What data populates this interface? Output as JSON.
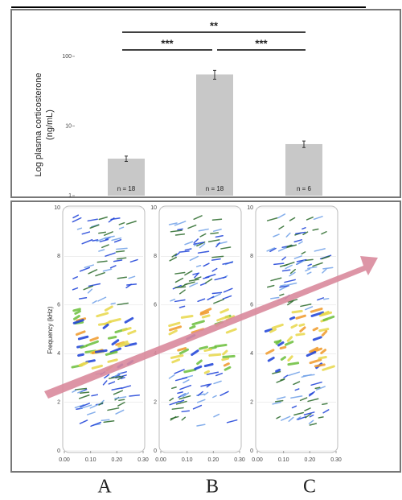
{
  "chart_data": [
    {
      "type": "bar",
      "ylabel": [
        "Log plasma corticosterone",
        "(ng/mL)"
      ],
      "categories": [
        "A",
        "B",
        "C"
      ],
      "values": [
        3.4,
        55,
        5.5
      ],
      "errors": [
        0.3,
        8,
        0.6
      ],
      "bar_labels": [
        "n = 18",
        "n = 18",
        "n = 6"
      ],
      "color": "#c8c8c8",
      "log_scale": true,
      "ylim": [
        1,
        100
      ],
      "yticks": [
        1,
        10,
        100
      ],
      "significance": [
        {
          "pair": [
            "A",
            "C"
          ],
          "label": "**"
        },
        {
          "pair": [
            "A",
            "B"
          ],
          "label": "***"
        },
        {
          "pair": [
            "B",
            "C"
          ],
          "label": "***"
        }
      ]
    },
    {
      "type": "spectrogram",
      "ylabel": "Frequency (kHz)",
      "xlim": [
        0,
        0.3
      ],
      "xticks": [
        {
          "value": 0,
          "label": "0.00"
        },
        {
          "value": 0.1,
          "label": "0.10"
        },
        {
          "value": 0.2,
          "label": "0.20"
        },
        {
          "value": 0.3,
          "label": "0.30"
        }
      ],
      "ylim": [
        0,
        10
      ],
      "yticks": [
        0,
        2,
        4,
        6,
        8,
        10
      ],
      "grid": true
    }
  ]
}
